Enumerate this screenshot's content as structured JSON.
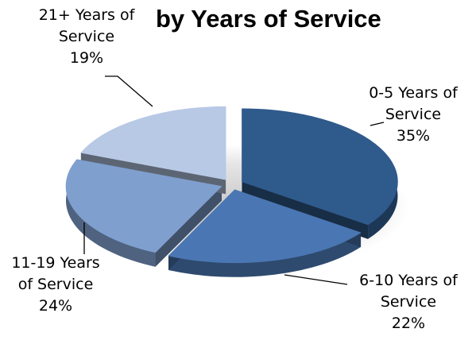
{
  "chart_data": {
    "type": "pie",
    "title": "by Years of Service",
    "exploded": true,
    "style": "3d",
    "slices": [
      {
        "label_lines": [
          "0-5 Years of",
          "Service"
        ],
        "label": "0-5 Years of Service",
        "value": 35,
        "value_text": "35%",
        "color": "#2f5a8c"
      },
      {
        "label_lines": [
          "6-10 Years of",
          "Service"
        ],
        "label": "6-10 Years of Service",
        "value": 22,
        "value_text": "22%",
        "color": "#4a77b3"
      },
      {
        "label_lines": [
          "11-19 Years",
          "of Service"
        ],
        "label": "11-19 Years of Service",
        "value": 24,
        "value_text": "24%",
        "color": "#7f9fcf"
      },
      {
        "label_lines": [
          "21+ Years of",
          "Service"
        ],
        "label": "21+ Years of Service",
        "value": 19,
        "value_text": "19%",
        "color": "#b8c9e6"
      }
    ]
  }
}
